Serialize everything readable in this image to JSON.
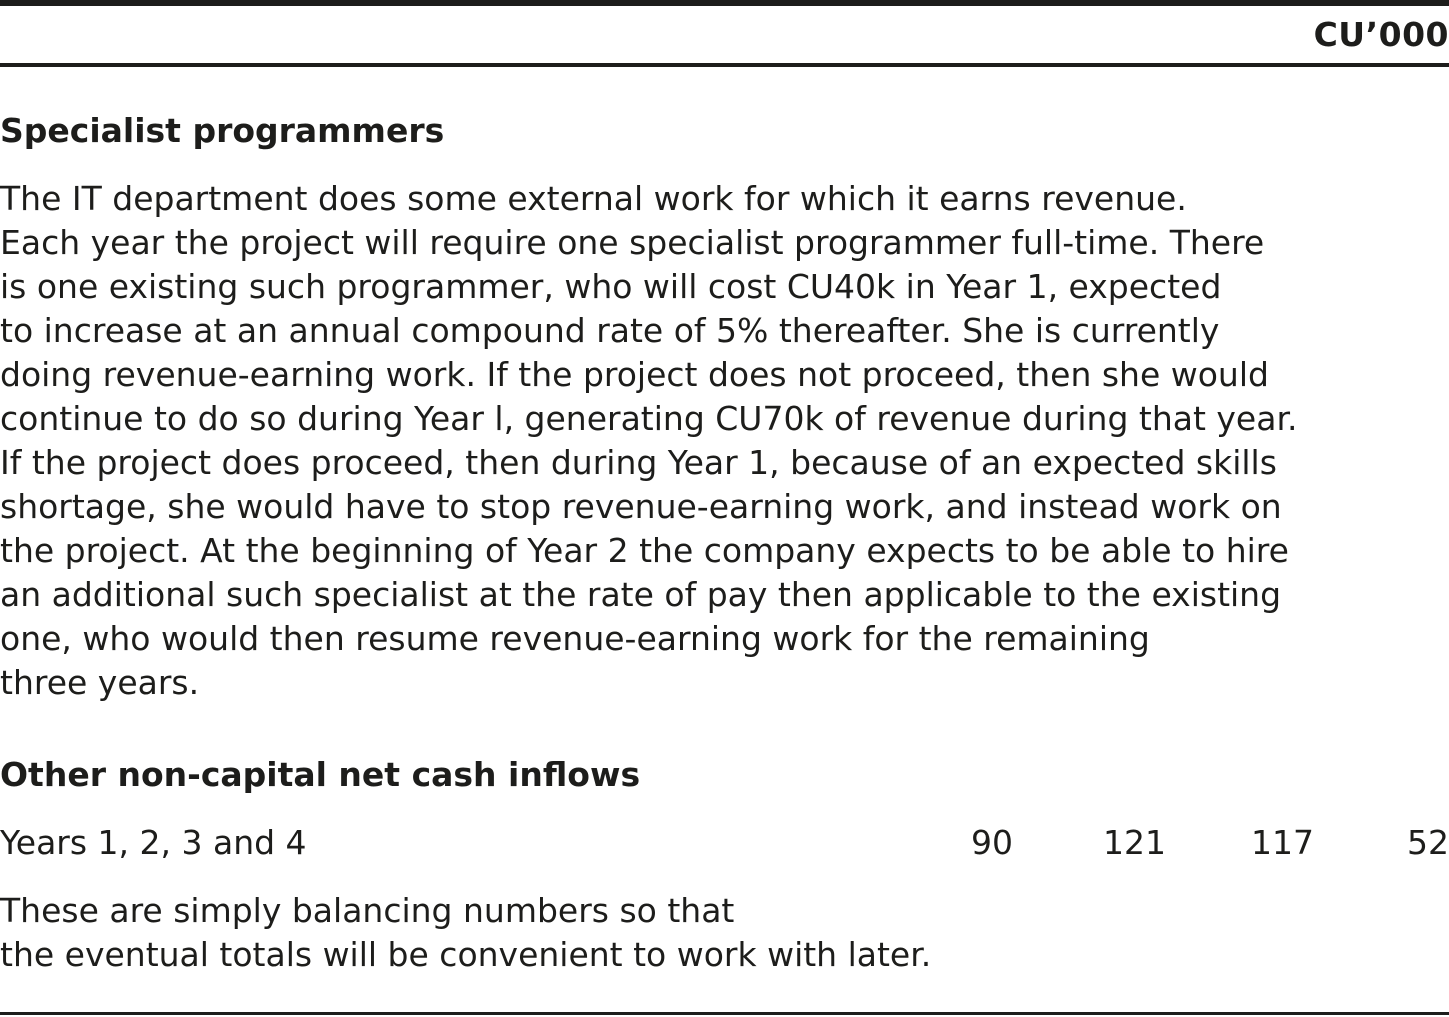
{
  "header": {
    "column_unit": "CU’000"
  },
  "specialist_programmers": {
    "heading": "Specialist programmers",
    "lines": [
      "The IT department does some external work for which it earns revenue.",
      "Each year the project will require one specialist programmer full-time. There",
      "is one existing such programmer, who will cost CU40k in Year 1, expected",
      "to increase at an annual compound rate of 5% thereafter. She is currently",
      "doing revenue-earning work. If the project does not proceed, then she would",
      "continue to do so during Year l, generating CU70k of revenue during that year.",
      "If the project does proceed, then during Year 1, because of an expected skills",
      "shortage, she would have to stop revenue-earning work, and instead work on",
      "the project. At the beginning of Year 2 the company expects to be able to hire",
      "an additional such specialist at the rate of pay then applicable to the existing",
      "one, who would then resume revenue-earning work for the remaining",
      "three years."
    ]
  },
  "other_inflows": {
    "heading": "Other non-capital net cash inflows",
    "row": {
      "label": "Years 1, 2, 3 and 4",
      "values": [
        "90",
        "121",
        "117",
        "52"
      ]
    },
    "note_lines": [
      "These are simply balancing numbers so that",
      "the eventual totals will be convenient to work with later."
    ]
  }
}
